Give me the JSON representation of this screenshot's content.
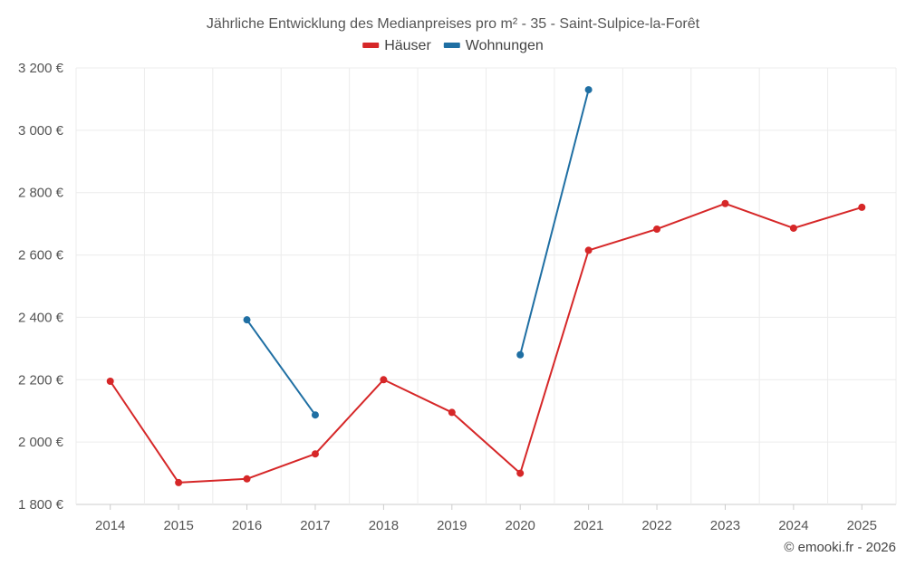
{
  "chart_data": {
    "type": "line",
    "title": "Jährliche Entwicklung des Medianpreises pro m² - 35 - Saint-Sulpice-la-Forêt",
    "categories": [
      "2014",
      "2015",
      "2016",
      "2017",
      "2018",
      "2019",
      "2020",
      "2021",
      "2022",
      "2023",
      "2024",
      "2025"
    ],
    "ylim": [
      1800,
      3200
    ],
    "yticks": [
      1800,
      2000,
      2200,
      2400,
      2600,
      2800,
      3000,
      3200
    ],
    "ytick_labels": [
      "1 800 €",
      "2 000 €",
      "2 200 €",
      "2 400 €",
      "2 600 €",
      "2 800 €",
      "3 000 €",
      "3 200 €"
    ],
    "grid": true,
    "legend_position": "top-center",
    "series": [
      {
        "name": "Häuser",
        "color": "#d62728",
        "values": [
          2195,
          1870,
          1882,
          1962,
          2200,
          2095,
          1900,
          2615,
          2683,
          2765,
          2686,
          2753
        ]
      },
      {
        "name": "Wohnungen",
        "color": "#1f6fa3",
        "values": [
          null,
          null,
          2392,
          2087,
          null,
          null,
          2280,
          3130,
          null,
          null,
          null,
          null
        ]
      }
    ]
  },
  "credit": "© emooki.fr - 2026"
}
